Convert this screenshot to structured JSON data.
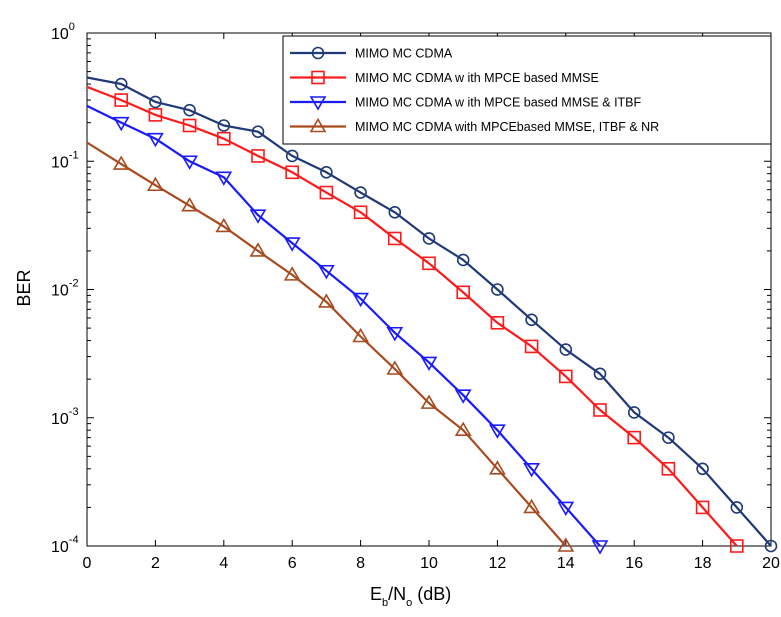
{
  "chart_data": {
    "type": "line",
    "title": "",
    "xlabel": "E_b/N_o (dB)",
    "xlabel_parts": {
      "E": "E",
      "b": "b",
      "slash_n": "/N",
      "o": "o",
      "unit": "(dB)"
    },
    "ylabel": "BER",
    "x_scale": "linear",
    "y_scale": "log",
    "xlim": [
      0,
      20
    ],
    "ylim": [
      0.0001,
      1
    ],
    "x_ticks": [
      "0",
      "2",
      "4",
      "6",
      "8",
      "10",
      "12",
      "14",
      "16",
      "18",
      "20"
    ],
    "y_ticks": [
      {
        "base": "10",
        "exp": "0"
      },
      {
        "base": "10",
        "exp": "-1"
      },
      {
        "base": "10",
        "exp": "-2"
      },
      {
        "base": "10",
        "exp": "-3"
      },
      {
        "base": "10",
        "exp": "-4"
      }
    ],
    "grid": false,
    "legend_position": "top-right",
    "series": [
      {
        "name": "MIMO  MC CDMA",
        "color": "#1f3a78",
        "marker": "circle",
        "x": [
          0,
          1,
          2,
          3,
          4,
          5,
          6,
          7,
          8,
          9,
          10,
          11,
          12,
          13,
          14,
          15,
          16,
          17,
          18,
          19,
          20
        ],
        "y": [
          0.45,
          0.4,
          0.29,
          0.25,
          0.19,
          0.17,
          0.11,
          0.082,
          0.057,
          0.04,
          0.025,
          0.017,
          0.01,
          0.0058,
          0.0034,
          0.0022,
          0.0011,
          0.0007,
          0.0004,
          0.0002,
          0.0001
        ]
      },
      {
        "name": "MIMO  MC CDMA w ith MPCE  based MMSE",
        "color": "#ff1a1a",
        "marker": "square",
        "x": [
          0,
          1,
          2,
          3,
          4,
          5,
          6,
          7,
          8,
          9,
          10,
          11,
          12,
          13,
          14,
          15,
          16,
          17,
          18,
          19
        ],
        "y": [
          0.38,
          0.3,
          0.23,
          0.19,
          0.15,
          0.11,
          0.082,
          0.057,
          0.04,
          0.025,
          0.016,
          0.0095,
          0.0055,
          0.0036,
          0.0021,
          0.00115,
          0.0007,
          0.0004,
          0.0002,
          0.0001
        ]
      },
      {
        "name": "MIMO MC CDMA w ith MPCE based MMSE & ITBF",
        "color": "#1a1aff",
        "marker": "triangle-down",
        "x": [
          0,
          1,
          2,
          3,
          4,
          5,
          6,
          7,
          8,
          9,
          10,
          11,
          12,
          13,
          14,
          15
        ],
        "y": [
          0.27,
          0.2,
          0.15,
          0.1,
          0.075,
          0.038,
          0.023,
          0.014,
          0.0085,
          0.0046,
          0.0027,
          0.0015,
          0.0008,
          0.0004,
          0.0002,
          0.0001
        ]
      },
      {
        "name": "MIMO MC CDMA with MPCEbased MMSE, ITBF & NR",
        "color": "#a84a1e",
        "marker": "triangle-up",
        "x": [
          0,
          1,
          2,
          3,
          4,
          5,
          6,
          7,
          8,
          9,
          10,
          11,
          12,
          13,
          14
        ],
        "y": [
          0.14,
          0.095,
          0.065,
          0.045,
          0.031,
          0.02,
          0.013,
          0.008,
          0.0043,
          0.0024,
          0.0013,
          0.0008,
          0.0004,
          0.0002,
          0.0001
        ]
      }
    ]
  }
}
